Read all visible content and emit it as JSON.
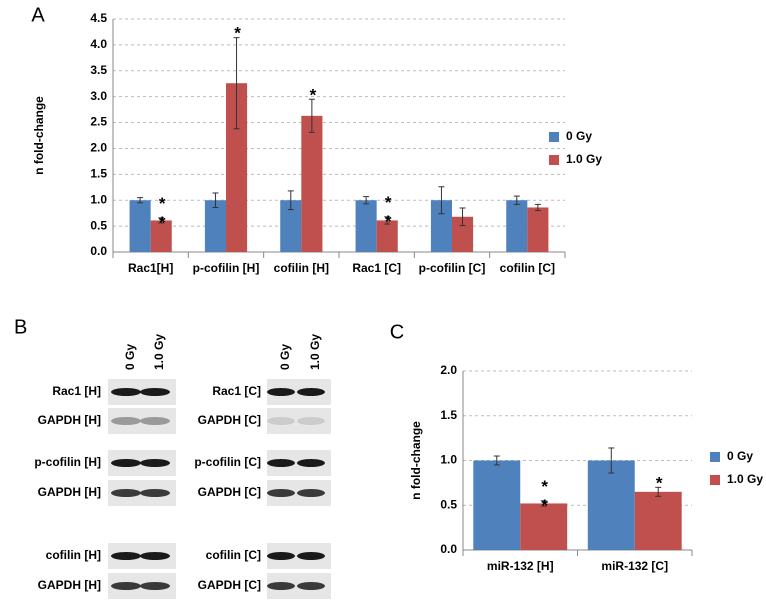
{
  "chart_data": [
    {
      "type": "bar",
      "panel_label": "A",
      "y_label": "n fold-change",
      "categories": [
        "Rac1[H]",
        "p-cofilin [H]",
        "cofilin [H]",
        "Rac1 [C]",
        "p-cofilin [C]",
        "cofilin [C]"
      ],
      "series": [
        {
          "name": "0 Gy",
          "color": "#4f81bd",
          "values": [
            1.0,
            1.0,
            1.0,
            1.0,
            1.0,
            1.0
          ],
          "errors": [
            0.05,
            0.14,
            0.18,
            0.07,
            0.26,
            0.08
          ]
        },
        {
          "name": "1.0 Gy",
          "color": "#c0504d",
          "values": [
            0.61,
            3.26,
            2.63,
            0.61,
            0.68,
            0.86
          ],
          "errors": [
            0.05,
            0.88,
            0.32,
            0.07,
            0.17,
            0.06
          ]
        }
      ],
      "annotations": [
        {
          "series": 1,
          "index": 0,
          "text": "**"
        },
        {
          "series": 1,
          "index": 1,
          "text": "*"
        },
        {
          "series": 1,
          "index": 2,
          "text": "*"
        },
        {
          "series": 1,
          "index": 3,
          "text": "**"
        }
      ],
      "ylim": [
        0,
        4.5
      ],
      "yticks": [
        {
          "value": 0,
          "label": "0.0"
        },
        0.5,
        {
          "value": 1,
          "label": "1.0"
        },
        1.5,
        {
          "value": 2,
          "label": "2.0"
        },
        2.5,
        {
          "value": 3,
          "label": "3.0"
        },
        3.5,
        {
          "value": 4,
          "label": "4.0"
        },
        4.5
      ],
      "grid": true,
      "legend": "right"
    },
    {
      "type": "bar",
      "panel_label": "C",
      "y_label": "n fold-change",
      "categories": [
        "miR-132 [H]",
        "miR-132 [C]"
      ],
      "series": [
        {
          "name": "0 Gy",
          "color": "#4f81bd",
          "values": [
            1.0,
            1.0
          ],
          "errors": [
            0.05,
            0.14
          ]
        },
        {
          "name": "1.0 Gy",
          "color": "#c0504d",
          "values": [
            0.52,
            0.65
          ],
          "errors": [
            0.03,
            0.05
          ]
        }
      ],
      "annotations": [
        {
          "series": 1,
          "index": 0,
          "text": "**"
        },
        {
          "series": 1,
          "index": 1,
          "text": "*"
        }
      ],
      "ylim": [
        0,
        2
      ],
      "yticks": [
        {
          "value": 0,
          "label": "0.0"
        },
        0.5,
        {
          "value": 1,
          "label": "1.0"
        },
        1.5,
        {
          "value": 2,
          "label": "2.0"
        }
      ],
      "grid": true,
      "legend": "right"
    }
  ],
  "blots": {
    "panel_label": "B",
    "groups": [
      {
        "lanes": [
          "0 Gy",
          "1.0 Gy"
        ],
        "rows": [
          "Rac1 [H]",
          "GAPDH [H]",
          "p-cofilin [H]",
          "GAPDH [H]",
          "cofilin [H]",
          "GAPDH [H]"
        ]
      },
      {
        "lanes": [
          "0 Gy",
          "1.0 Gy"
        ],
        "rows": [
          "Rac1 [C]",
          "GAPDH [C]",
          "p-cofilin [C]",
          "GAPDH [C]",
          "cofilin [C]",
          "GAPDH [C]"
        ]
      }
    ]
  }
}
